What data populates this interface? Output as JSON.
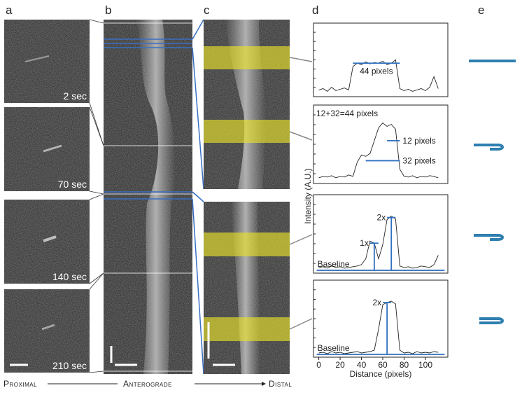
{
  "panels": {
    "a": {
      "label": "a",
      "times": [
        "2 sec",
        "70 sec",
        "140 sec",
        "210 sec"
      ]
    },
    "b": {
      "label": "b"
    },
    "c": {
      "label": "c"
    },
    "d": {
      "label": "d",
      "ylabel": "Intensity (A.U.)"
    },
    "e": {
      "label": "e"
    }
  },
  "caption": {
    "proximal": "Proximal",
    "anterograde": "Anterograde",
    "distal": "Distal"
  },
  "chart_data": [
    {
      "type": "line",
      "color": "#222222",
      "xlim": [
        -5,
        121
      ],
      "ylim": [
        0,
        110
      ],
      "x": [
        0,
        4,
        8,
        12,
        16,
        20,
        24,
        28,
        32,
        36,
        40,
        44,
        48,
        52,
        56,
        60,
        64,
        68,
        72,
        76,
        80,
        84,
        88,
        92,
        96,
        100,
        104,
        108,
        112
      ],
      "values": [
        10,
        12,
        8,
        14,
        9,
        11,
        13,
        10,
        45,
        50,
        48,
        52,
        49,
        51,
        50,
        53,
        48,
        50,
        55,
        12,
        9,
        11,
        8,
        10,
        12,
        9,
        14,
        30,
        12
      ],
      "annotations": [
        {
          "text": "44 pixels",
          "x": [
            32,
            76
          ],
          "y": 50
        }
      ]
    },
    {
      "type": "line",
      "color": "#222222",
      "xlim": [
        -5,
        121
      ],
      "ylim": [
        0,
        110
      ],
      "title": "12+32=44 pixels",
      "x": [
        0,
        4,
        8,
        12,
        16,
        20,
        24,
        28,
        32,
        36,
        40,
        44,
        48,
        52,
        56,
        60,
        64,
        68,
        72,
        76,
        80,
        84,
        88,
        92,
        96,
        100,
        104,
        108,
        112
      ],
      "values": [
        8,
        10,
        9,
        11,
        8,
        10,
        9,
        12,
        10,
        30,
        40,
        38,
        42,
        60,
        78,
        85,
        80,
        83,
        76,
        20,
        10,
        9,
        11,
        8,
        10,
        9,
        11,
        10,
        8
      ],
      "annotations": [
        {
          "text": "12 pixels",
          "x": [
            64,
            76
          ],
          "y": 60
        },
        {
          "text": "32 pixels",
          "x": [
            44,
            76
          ],
          "y": 32
        }
      ]
    },
    {
      "type": "line",
      "color": "#222222",
      "xlim": [
        -5,
        121
      ],
      "ylim": [
        0,
        110
      ],
      "x": [
        0,
        4,
        8,
        12,
        16,
        20,
        24,
        28,
        32,
        36,
        40,
        44,
        48,
        52,
        56,
        60,
        64,
        68,
        72,
        76,
        80,
        84,
        88,
        92,
        96,
        100,
        104,
        108,
        112
      ],
      "values": [
        8,
        9,
        7,
        10,
        8,
        9,
        7,
        8,
        9,
        10,
        12,
        20,
        45,
        42,
        20,
        40,
        75,
        80,
        76,
        10,
        8,
        9,
        7,
        8,
        10,
        9,
        8,
        12,
        25
      ],
      "annotations": [
        {
          "text": "Baseline",
          "x": [
            -2,
            118
          ],
          "y": 4
        },
        {
          "text": "1x",
          "x": 52,
          "y": [
            4,
            42
          ]
        },
        {
          "text": "2x",
          "x": 68,
          "y": [
            4,
            78
          ]
        }
      ]
    },
    {
      "type": "line",
      "color": "#222222",
      "xlim": [
        -5,
        121
      ],
      "ylim": [
        0,
        110
      ],
      "xlabel": "Distance (pixels)",
      "xticks": [
        0,
        20,
        40,
        60,
        80,
        100
      ],
      "x": [
        0,
        4,
        8,
        12,
        16,
        20,
        24,
        28,
        32,
        36,
        40,
        44,
        48,
        52,
        56,
        60,
        64,
        68,
        72,
        76,
        80,
        84,
        88,
        92,
        96,
        100,
        104,
        108,
        112
      ],
      "values": [
        6,
        7,
        5,
        8,
        6,
        7,
        5,
        6,
        7,
        8,
        6,
        7,
        8,
        10,
        40,
        75,
        78,
        80,
        76,
        10,
        6,
        7,
        5,
        8,
        6,
        7,
        6,
        8,
        7
      ],
      "annotations": [
        {
          "text": "Baseline",
          "x": [
            -2,
            118
          ],
          "y": 4
        },
        {
          "text": "2x",
          "x": 64,
          "y": [
            4,
            78
          ]
        }
      ]
    }
  ]
}
